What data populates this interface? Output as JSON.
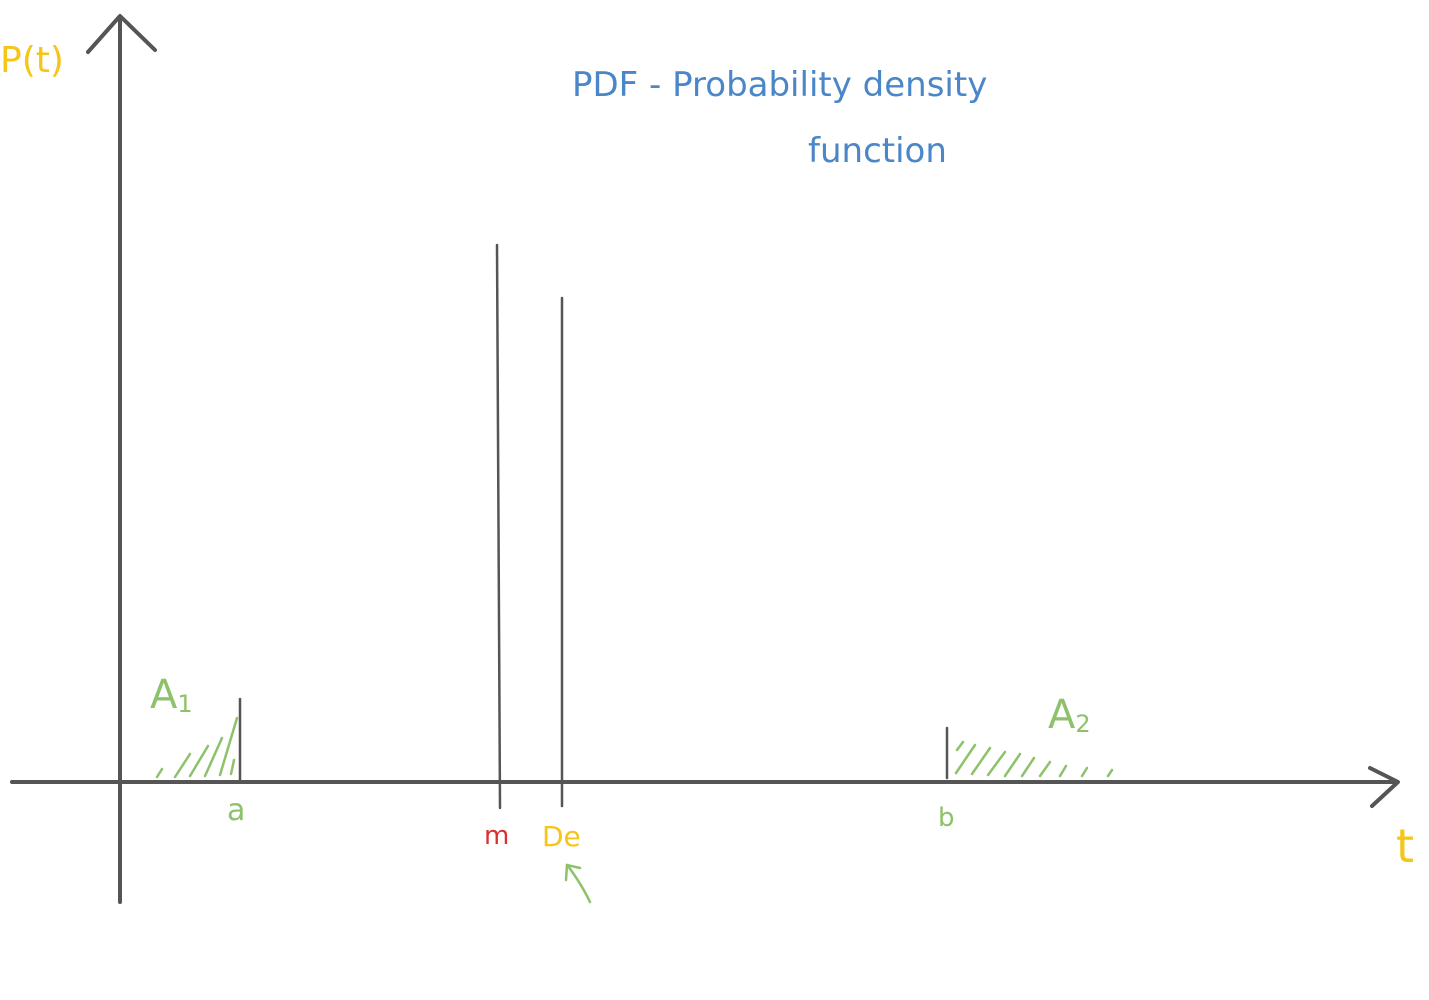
{
  "title": {
    "line1": "PDF - Probability density",
    "line2": "function"
  },
  "axes": {
    "y_label": "P(t)",
    "x_label": "t"
  },
  "markers": {
    "a": "a",
    "m": "m",
    "De": "De",
    "b": "b"
  },
  "areas": {
    "A1": {
      "letter": "A",
      "sub": "1"
    },
    "A2": {
      "letter": "A",
      "sub": "2"
    }
  },
  "colors": {
    "axis": "#555555",
    "title": "#4a86c8",
    "yellow": "#f5c518",
    "green": "#8dc26b",
    "red": "#d93030"
  }
}
